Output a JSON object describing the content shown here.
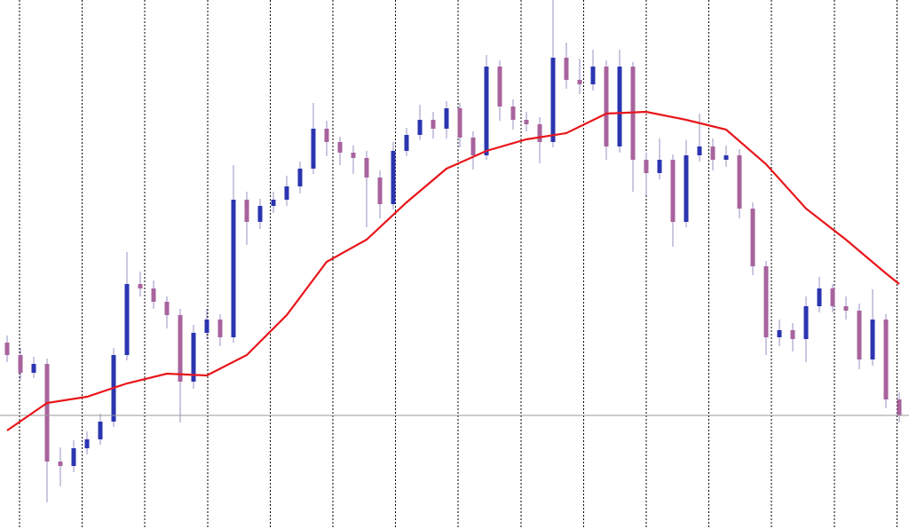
{
  "chart_data": {
    "type": "candlestick",
    "ylim": [
      0,
      596
    ],
    "grid": true,
    "up_color": "#2b35b0",
    "down_color": "#a8639d",
    "wick_color": "#9a8fc0",
    "open": [
      210,
      196,
      176,
      186,
      76,
      71,
      91,
      101,
      121,
      196,
      276,
      271,
      256,
      241,
      166,
      221,
      236,
      216,
      371,
      346,
      364,
      371,
      386,
      406,
      451,
      436,
      424,
      418,
      396,
      366,
      426,
      444,
      461,
      451,
      474,
      441,
      421,
      521,
      476,
      461,
      456,
      436,
      531,
      506,
      501,
      521,
      431,
      521,
      416,
      401,
      416,
      346,
      421,
      431,
      416,
      421,
      361,
      296,
      216,
      224,
      214,
      251,
      271,
      251,
      246,
      191,
      236,
      146
    ],
    "high": [
      218,
      204,
      194,
      192,
      92,
      100,
      110,
      130,
      204,
      312,
      290,
      280,
      262,
      248,
      230,
      248,
      242,
      410,
      380,
      372,
      380,
      398,
      414,
      480,
      460,
      442,
      432,
      426,
      404,
      436,
      452,
      478,
      470,
      482,
      480,
      448,
      534,
      528,
      484,
      470,
      464,
      596,
      548,
      530,
      540,
      528,
      540,
      526,
      424,
      440,
      422,
      438,
      468,
      440,
      432,
      428,
      368,
      302,
      236,
      232,
      262,
      284,
      276,
      262,
      254,
      270,
      242,
      154
    ],
    "low": [
      188,
      168,
      170,
      30,
      48,
      64,
      84,
      95,
      115,
      190,
      262,
      248,
      226,
      120,
      158,
      214,
      206,
      210,
      320,
      338,
      356,
      364,
      378,
      400,
      420,
      410,
      400,
      340,
      350,
      360,
      420,
      438,
      440,
      440,
      430,
      405,
      416,
      460,
      450,
      448,
      412,
      430,
      496,
      490,
      494,
      416,
      424,
      380,
      376,
      394,
      318,
      340,
      414,
      404,
      408,
      350,
      286,
      196,
      206,
      200,
      188,
      244,
      244,
      236,
      180,
      184,
      136,
      120
    ],
    "close": [
      196,
      176,
      186,
      76,
      71,
      91,
      101,
      121,
      196,
      276,
      271,
      256,
      241,
      166,
      221,
      236,
      216,
      371,
      346,
      364,
      371,
      386,
      406,
      451,
      436,
      424,
      418,
      396,
      366,
      426,
      444,
      461,
      451,
      474,
      441,
      421,
      521,
      476,
      461,
      456,
      436,
      531,
      506,
      501,
      521,
      431,
      521,
      416,
      401,
      416,
      346,
      421,
      431,
      416,
      421,
      361,
      296,
      216,
      224,
      214,
      251,
      271,
      251,
      246,
      191,
      236,
      146,
      128
    ],
    "series": [
      {
        "color": "#e8161b",
        "x": [
          0,
          3,
          6,
          9,
          12,
          15,
          18,
          21,
          24,
          27,
          30,
          33,
          36,
          39,
          42,
          45,
          48,
          51,
          54,
          57,
          60,
          63,
          66,
          67
        ],
        "values": [
          111,
          142,
          149,
          164,
          175,
          173,
          196,
          241,
          301,
          326,
          368,
          406,
          426,
          439,
          446,
          468,
          470,
          461,
          450,
          411,
          361,
          326,
          288,
          276
        ]
      }
    ]
  }
}
